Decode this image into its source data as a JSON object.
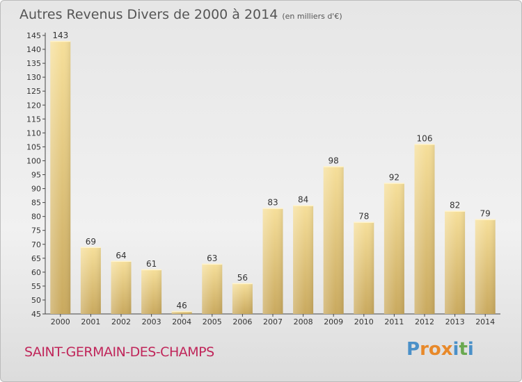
{
  "header": {
    "title": "Autres Revenus Divers de 2000 à 2014",
    "unit": "(en milliers d'€)"
  },
  "footer": {
    "place": "SAINT-GERMAIN-DES-CHAMPS",
    "brand": "Proxiti"
  },
  "colors": {
    "bar_light": "#f6df9a",
    "bar_dark": "#c9a95e",
    "place_text": "#c0265a",
    "title_text": "#555555",
    "brand_letters": [
      "#4a90c8",
      "#e8892a",
      "#e8892a",
      "#e8892a",
      "#4a90c8",
      "#6aa84f",
      "#4a90c8"
    ]
  },
  "chart_data": {
    "type": "bar",
    "title": "Autres Revenus Divers de 2000 à 2014",
    "subtitle": "(en milliers d'€)",
    "categories": [
      "2000",
      "2001",
      "2002",
      "2003",
      "2004",
      "2005",
      "2006",
      "2007",
      "2008",
      "2009",
      "2010",
      "2011",
      "2012",
      "2013",
      "2014"
    ],
    "values": [
      143,
      69,
      64,
      61,
      46,
      63,
      56,
      83,
      84,
      98,
      78,
      92,
      106,
      82,
      79
    ],
    "ylim": [
      45,
      145
    ],
    "yticks": [
      45,
      50,
      55,
      60,
      65,
      70,
      75,
      80,
      85,
      90,
      95,
      100,
      105,
      110,
      115,
      120,
      125,
      130,
      135,
      140,
      145
    ],
    "xlabel": "",
    "ylabel": "",
    "grid": false
  }
}
